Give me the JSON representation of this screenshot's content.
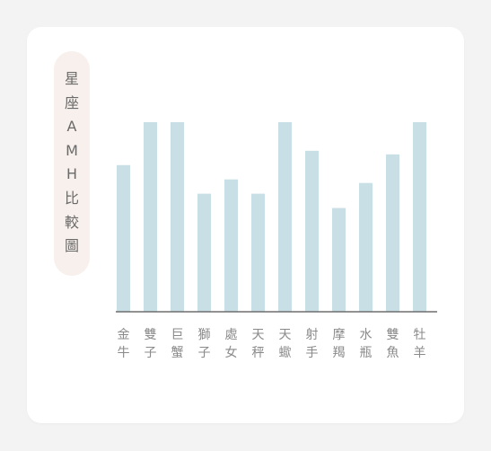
{
  "title_chars": [
    "星",
    "座",
    "A",
    "M",
    "H",
    "比",
    "較",
    "圖"
  ],
  "chart_data": {
    "type": "bar",
    "categories": [
      "金牛",
      "雙子",
      "巨蟹",
      "獅子",
      "處女",
      "天秤",
      "天蠍",
      "射手",
      "摩羯",
      "水瓶",
      "雙魚",
      "牡羊"
    ],
    "values": [
      4.1,
      5.3,
      5.3,
      3.3,
      3.7,
      3.3,
      5.3,
      4.5,
      2.9,
      3.6,
      4.4,
      5.3
    ],
    "title": "星座AMH比較圖",
    "xlabel": "",
    "ylabel": "",
    "ylim": [
      0,
      5.3
    ],
    "grid": false,
    "legend": "none",
    "colors": {
      "bar": "#c8dfe5",
      "axis": "#6e6e6e",
      "label": "#8a8a8a",
      "title_bg": "#f8f0ec"
    }
  }
}
